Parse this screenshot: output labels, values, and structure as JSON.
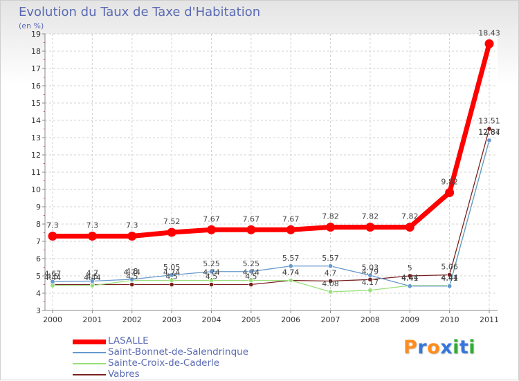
{
  "header": {
    "title": "Evolution du Taux de Taxe d'Habitation",
    "unit": "(en %)"
  },
  "chart_data": {
    "type": "line",
    "title": "Evolution du Taux de Taxe d'Habitation",
    "ylabel": "(en %)",
    "xlabel": "",
    "x": [
      "2000",
      "2001",
      "2002",
      "2003",
      "2004",
      "2005",
      "2006",
      "2007",
      "2008",
      "2009",
      "2010",
      "2011"
    ],
    "ylim": [
      3,
      19
    ],
    "yticks": [
      "3",
      "4",
      "5",
      "6",
      "7",
      "8",
      "9",
      "10",
      "11",
      "12",
      "13",
      "14",
      "15",
      "16",
      "17",
      "18",
      "19"
    ],
    "grid": true,
    "series": [
      {
        "name": "Vabres",
        "color": "#7a1f1f",
        "values": [
          4.5,
          4.5,
          4.5,
          4.5,
          4.5,
          4.5,
          4.74,
          4.7,
          4.79,
          5.0,
          5.06,
          13.51
        ],
        "labels": [
          "4.5",
          "4.5",
          "4.5",
          "4.5",
          "4.5",
          "4.5",
          "4.74",
          "4.7",
          "4.79",
          "5",
          "5.06",
          "13.51"
        ]
      },
      {
        "name": "Sainte-Croix-de-Caderle",
        "color": "#99e07a",
        "values": [
          4.44,
          4.44,
          4.74,
          4.74,
          4.74,
          4.74,
          4.74,
          4.08,
          4.17,
          4.44,
          4.44,
          12.87
        ],
        "labels": [
          "4.44",
          "4.44",
          "4.74",
          "4.74",
          "4.74",
          "4.74",
          "4.74",
          "4.08",
          "4.17",
          "4.44",
          "4.44",
          "12.87"
        ]
      },
      {
        "name": "Saint-Bonnet-de-Salendrinque",
        "color": "#6699cc",
        "values": [
          4.67,
          4.7,
          4.8,
          5.05,
          5.25,
          5.25,
          5.57,
          5.57,
          5.03,
          4.41,
          4.41,
          12.84
        ],
        "labels": [
          "4.67",
          "4.7",
          "4.8",
          "5.05",
          "5.25",
          "5.25",
          "5.57",
          "5.57",
          "5.03",
          "4.41",
          "4.41",
          "12.84"
        ]
      },
      {
        "name": "LASALLE",
        "color": "#ff0000",
        "values": [
          7.3,
          7.3,
          7.3,
          7.52,
          7.67,
          7.67,
          7.67,
          7.82,
          7.82,
          7.82,
          9.82,
          18.43
        ],
        "labels": [
          "7.3",
          "7.3",
          "7.3",
          "7.52",
          "7.67",
          "7.67",
          "7.67",
          "7.82",
          "7.82",
          "7.82",
          "9.82",
          "18.43"
        ]
      }
    ]
  },
  "legend": {
    "items": [
      {
        "label": "LASALLE",
        "color": "#ff0000"
      },
      {
        "label": "Saint-Bonnet-de-Salendrinque",
        "color": "#6699cc"
      },
      {
        "label": "Sainte-Croix-de-Caderle",
        "color": "#99e07a"
      },
      {
        "label": "Vabres",
        "color": "#7a1f1f"
      }
    ]
  },
  "logo": {
    "text": "Proxiti",
    "colors": [
      "#ff8c1a",
      "#3377dd",
      "#ff8c1a",
      "#3377dd",
      "#33aa33",
      "#3377dd",
      "#33aa33"
    ]
  }
}
